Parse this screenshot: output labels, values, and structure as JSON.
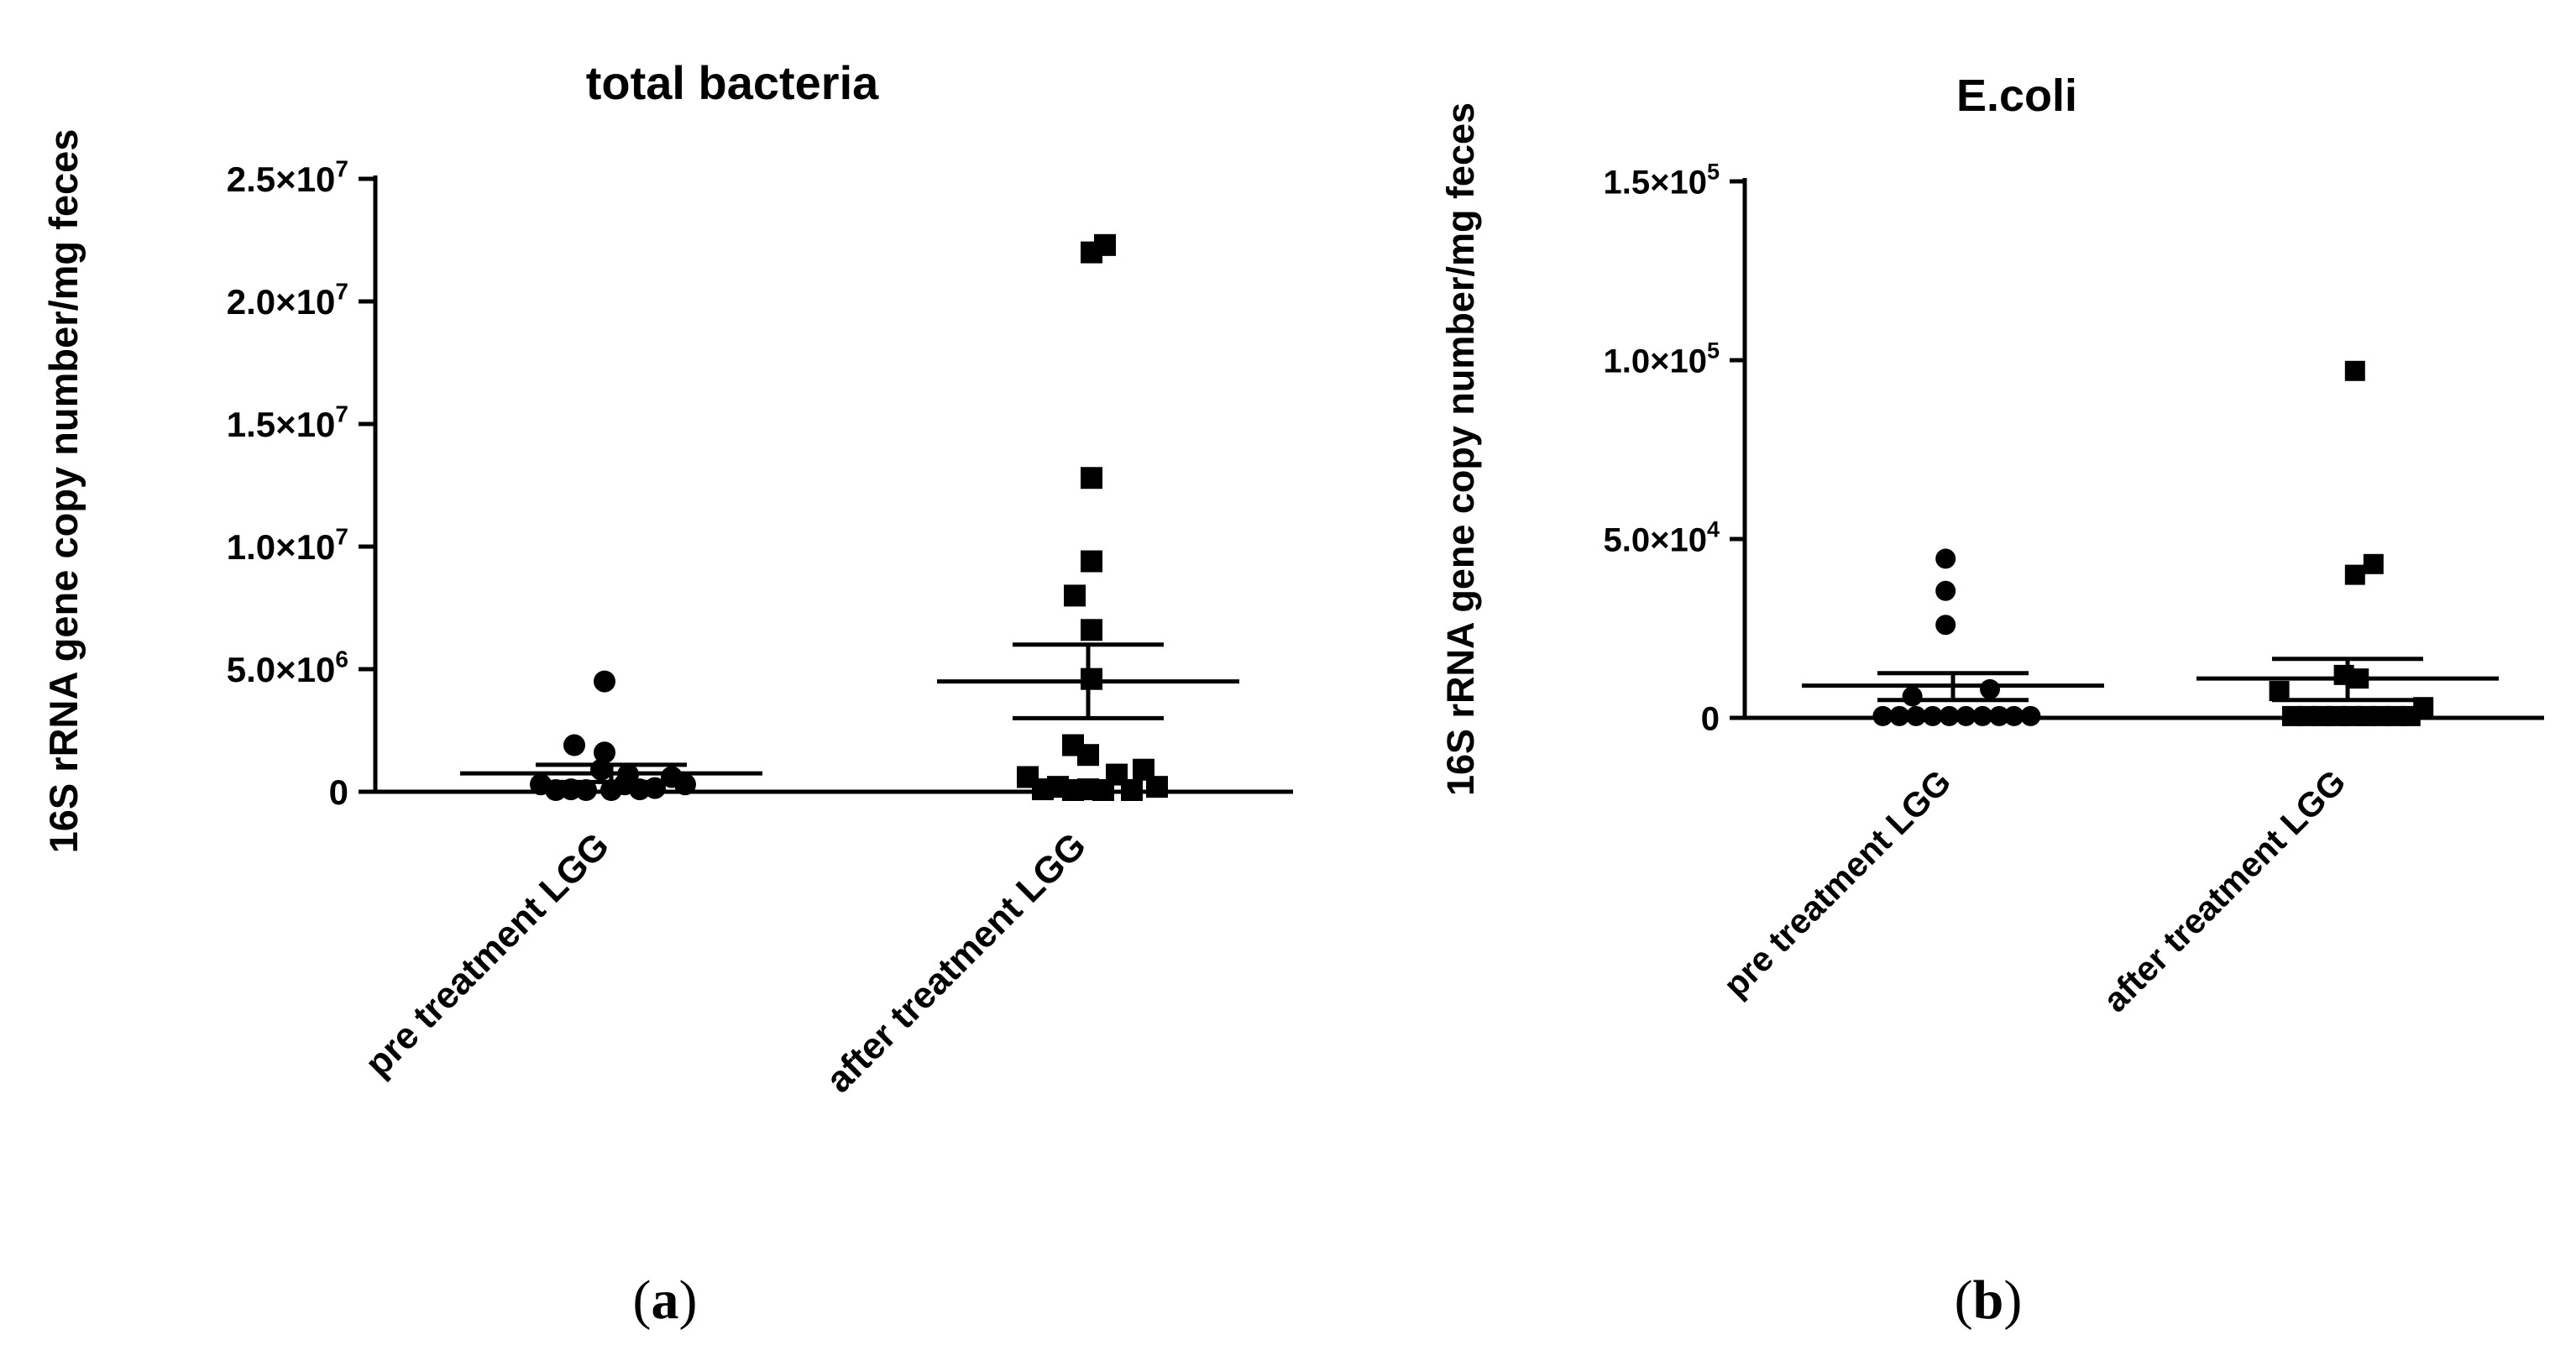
{
  "figure": {
    "panels": [
      {
        "id": "a",
        "label_letter": "a",
        "chart_data": {
          "type": "scatter",
          "title": "total bacteria",
          "ylabel": "16S rRNA gene copy number/mg feces",
          "xlabel": "",
          "ylim": [
            0,
            25000000
          ],
          "yticks": [
            {
              "value": 0,
              "mant": "0",
              "exp": ""
            },
            {
              "value": 5000000,
              "mant": "5.0×10",
              "exp": "6"
            },
            {
              "value": 10000000,
              "mant": "1.0×10",
              "exp": "7"
            },
            {
              "value": 15000000,
              "mant": "1.5×10",
              "exp": "7"
            },
            {
              "value": 20000000,
              "mant": "2.0×10",
              "exp": "7"
            },
            {
              "value": 25000000,
              "mant": "2.5×10",
              "exp": "7"
            }
          ],
          "categories": [
            "pre treatment LGG",
            "after treatment LGG"
          ],
          "series": [
            {
              "name": "pre treatment LGG",
              "marker": "circle",
              "mean": 750000,
              "sem_low": 400000,
              "sem_high": 1100000,
              "points": [
                {
                  "o": -0.42,
                  "v": 300000
                },
                {
                  "o": -0.33,
                  "v": 50000
                },
                {
                  "o": -0.24,
                  "v": 100000
                },
                {
                  "o": -0.15,
                  "v": 50000
                },
                {
                  "o": -0.06,
                  "v": 900000
                },
                {
                  "o": 0.0,
                  "v": 50000
                },
                {
                  "o": 0.08,
                  "v": 300000
                },
                {
                  "o": 0.17,
                  "v": 100000
                },
                {
                  "o": 0.26,
                  "v": 150000
                },
                {
                  "o": 0.36,
                  "v": 600000
                },
                {
                  "o": 0.44,
                  "v": 300000
                },
                {
                  "o": -0.22,
                  "v": 1900000
                },
                {
                  "o": -0.04,
                  "v": 1600000
                },
                {
                  "o": -0.04,
                  "v": 4500000
                },
                {
                  "o": 0.1,
                  "v": 700000
                }
              ]
            },
            {
              "name": "after treatment LGG",
              "marker": "square",
              "mean": 4500000,
              "sem_low": 3000000,
              "sem_high": 6000000,
              "points": [
                {
                  "o": -0.36,
                  "v": 600000
                },
                {
                  "o": -0.27,
                  "v": 100000
                },
                {
                  "o": -0.18,
                  "v": 200000
                },
                {
                  "o": -0.09,
                  "v": 50000
                },
                {
                  "o": 0.0,
                  "v": 100000
                },
                {
                  "o": 0.09,
                  "v": 50000
                },
                {
                  "o": 0.17,
                  "v": 700000
                },
                {
                  "o": 0.26,
                  "v": 50000
                },
                {
                  "o": 0.33,
                  "v": 900000
                },
                {
                  "o": 0.41,
                  "v": 200000
                },
                {
                  "o": -0.09,
                  "v": 1900000
                },
                {
                  "o": 0.0,
                  "v": 1500000
                },
                {
                  "o": 0.02,
                  "v": 4600000
                },
                {
                  "o": 0.02,
                  "v": 6600000
                },
                {
                  "o": -0.08,
                  "v": 8000000
                },
                {
                  "o": 0.02,
                  "v": 9400000
                },
                {
                  "o": 0.02,
                  "v": 12800000
                },
                {
                  "o": 0.02,
                  "v": 22000000
                },
                {
                  "o": 0.1,
                  "v": 22300000
                }
              ]
            }
          ]
        }
      },
      {
        "id": "b",
        "label_letter": "b",
        "chart_data": {
          "type": "scatter",
          "title": "E.coli",
          "ylabel": "16S rRNA gene copy number/mg feces",
          "xlabel": "",
          "ylim": [
            0,
            150000
          ],
          "yticks": [
            {
              "value": 0,
              "mant": "0",
              "exp": ""
            },
            {
              "value": 50000,
              "mant": "5.0×10",
              "exp": "4"
            },
            {
              "value": 100000,
              "mant": "1.0×10",
              "exp": "5"
            },
            {
              "value": 150000,
              "mant": "1.5×10",
              "exp": "5"
            }
          ],
          "categories": [
            "pre treatment LGG",
            "after treatment LGG"
          ],
          "series": [
            {
              "name": "pre treatment LGG",
              "marker": "circle",
              "mean": 9000,
              "sem_low": 5000,
              "sem_high": 12500,
              "points": [
                {
                  "o": -0.38,
                  "v": 500
                },
                {
                  "o": -0.29,
                  "v": 500
                },
                {
                  "o": -0.2,
                  "v": 500
                },
                {
                  "o": -0.11,
                  "v": 500
                },
                {
                  "o": -0.02,
                  "v": 500
                },
                {
                  "o": 0.07,
                  "v": 500
                },
                {
                  "o": 0.16,
                  "v": 500
                },
                {
                  "o": 0.25,
                  "v": 500
                },
                {
                  "o": 0.33,
                  "v": 500
                },
                {
                  "o": 0.42,
                  "v": 500
                },
                {
                  "o": -0.22,
                  "v": 6000
                },
                {
                  "o": 0.2,
                  "v": 8000
                },
                {
                  "o": -0.04,
                  "v": 26000
                },
                {
                  "o": -0.04,
                  "v": 35500
                },
                {
                  "o": -0.04,
                  "v": 44500
                }
              ]
            },
            {
              "name": "after treatment LGG",
              "marker": "square",
              "mean": 11000,
              "sem_low": 5000,
              "sem_high": 16500,
              "points": [
                {
                  "o": -0.3,
                  "v": 500
                },
                {
                  "o": -0.22,
                  "v": 500
                },
                {
                  "o": -0.14,
                  "v": 500
                },
                {
                  "o": -0.06,
                  "v": 500
                },
                {
                  "o": 0.02,
                  "v": 500
                },
                {
                  "o": 0.1,
                  "v": 500
                },
                {
                  "o": 0.18,
                  "v": 500
                },
                {
                  "o": 0.26,
                  "v": 500
                },
                {
                  "o": 0.34,
                  "v": 500
                },
                {
                  "o": -0.37,
                  "v": 7500
                },
                {
                  "o": -0.02,
                  "v": 12000
                },
                {
                  "o": 0.06,
                  "v": 11000
                },
                {
                  "o": 0.41,
                  "v": 3000
                },
                {
                  "o": 0.04,
                  "v": 40000
                },
                {
                  "o": 0.14,
                  "v": 43000
                },
                {
                  "o": 0.04,
                  "v": 97000
                }
              ]
            }
          ]
        }
      }
    ]
  }
}
